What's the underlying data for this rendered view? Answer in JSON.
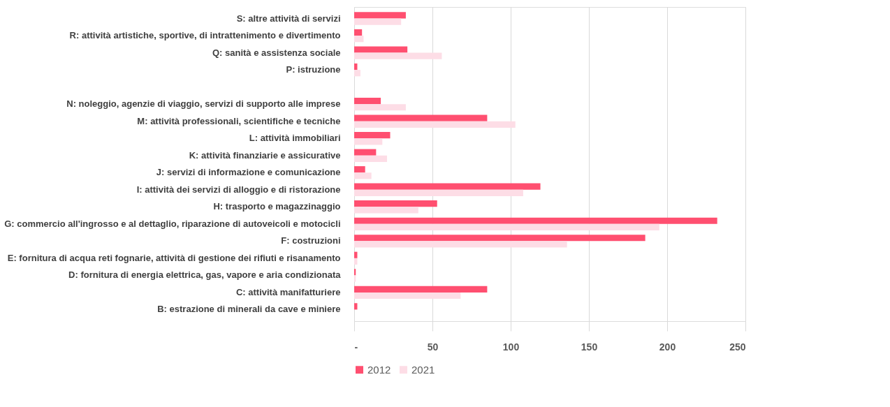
{
  "chart_data": {
    "type": "bar",
    "orientation": "horizontal",
    "categories": [
      "S: altre attività di servizi",
      "R: attività artistiche, sportive, di intrattenimento e divertimento",
      "Q: sanità e assistenza sociale",
      "P: istruzione",
      null,
      "N: noleggio, agenzie di viaggio, servizi di supporto alle imprese",
      "M: attività professionali, scientifiche e tecniche",
      "L: attività immobiliari",
      "K: attività finanziarie e assicurative",
      "J: servizi di informazione e comunicazione",
      "I: attività dei servizi di alloggio e di ristorazione",
      "H: trasporto e magazzinaggio",
      "G: commercio all'ingrosso e al dettaglio, riparazione di autoveicoli e motocicli",
      "F: costruzioni",
      "E: fornitura di acqua reti fognarie, attività di gestione dei rifiuti e risanamento",
      "D: fornitura di energia elettrica, gas, vapore e aria condizionata",
      "C: attività manifatturiere",
      "B: estrazione di minerali da cave e miniere"
    ],
    "series": [
      {
        "name": "2012",
        "color": "#ff4f70",
        "values": [
          33,
          5,
          34,
          2,
          null,
          17,
          85,
          23,
          14,
          7,
          119,
          53,
          232,
          186,
          2,
          1,
          85,
          2
        ]
      },
      {
        "name": "2021",
        "color": "#fddde6",
        "values": [
          30,
          6,
          56,
          4,
          null,
          33,
          103,
          18,
          21,
          11,
          108,
          41,
          195,
          136,
          2,
          1,
          68,
          null
        ]
      }
    ],
    "xlim": [
      0,
      250
    ],
    "xticks": [
      {
        "value": 0,
        "label": "-"
      },
      50,
      100,
      150,
      200,
      250
    ],
    "grid": "x",
    "legend": "bottom"
  }
}
